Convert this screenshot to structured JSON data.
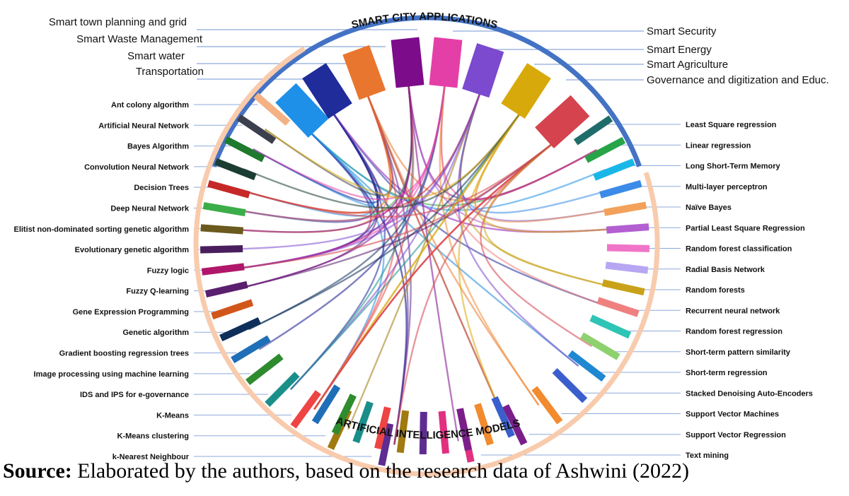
{
  "diagram": {
    "app_label": "SMART CITY APPLICATIONS",
    "ai_label": "ARTIFICIAL INTELLIGENCE MODELS",
    "applications": [
      {
        "label": "Smart town planning and grid",
        "color": "#E9762E"
      },
      {
        "label": "Smart Waste Management",
        "color": "#1F2C9A"
      },
      {
        "label": "Smart water",
        "color": "#1E90E8"
      },
      {
        "label": "Transportation",
        "color": "#1E90E8"
      },
      {
        "label": "Smart Security",
        "color": "#E43FA7"
      },
      {
        "label": "Smart Energy",
        "color": "#7B4ACF"
      },
      {
        "label": "Smart Agriculture",
        "color": "#D8A90A"
      },
      {
        "label": "Governance and digitization and Educ.",
        "color": "#D4434E"
      }
    ],
    "app_blocks": [
      {
        "color": "#1E90E8"
      },
      {
        "color": "#1F2C9A"
      },
      {
        "color": "#E9762E"
      },
      {
        "color": "#7D0C8A"
      },
      {
        "color": "#E43FA7"
      },
      {
        "color": "#7B4ACF"
      },
      {
        "color": "#D8A90A"
      },
      {
        "color": "#D4434E"
      }
    ],
    "models_left": [
      {
        "label": "Ant colony algorithm",
        "color": "#F4B183"
      },
      {
        "label": "Artificial Neural Network",
        "color": "#3C3F4C"
      },
      {
        "label": "Bayes Algorithm",
        "color": "#1E7A2E"
      },
      {
        "label": "Convolution Neural Network",
        "color": "#1C3D33"
      },
      {
        "label": "Decision Trees",
        "color": "#C62828"
      },
      {
        "label": "Deep Neural Network",
        "color": "#3BAE4A"
      },
      {
        "label": "Elitist non-dominated sorting genetic algorithm",
        "color": "#6B5A1E"
      },
      {
        "label": "Evolutionary genetic algorithm",
        "color": "#4A1E5E"
      },
      {
        "label": "Fuzzy logic",
        "color": "#B0176A"
      },
      {
        "label": "Fuzzy Q-learning",
        "color": "#5A1F6E"
      },
      {
        "label": "Gene Expression Programming",
        "color": "#D2561A"
      },
      {
        "label": "Genetic algorithm",
        "color": "#0E2F5A"
      },
      {
        "label": "Gradient boosting regression trees",
        "color": "#1F6FB8"
      },
      {
        "label": "Image processing using machine learning",
        "color": "#2E8B2E"
      },
      {
        "label": "IDS and IPS for e-governance",
        "color": "#1A8F8A"
      },
      {
        "label": "K-Means",
        "color": "#EE4444"
      },
      {
        "label": "K-Means clustering",
        "color": "#A07A10"
      },
      {
        "label": "k-Nearest Neighbour",
        "color": "#5E2C91"
      }
    ],
    "models_right": [
      {
        "label": "Least Square regression",
        "color": "#1F6D6A"
      },
      {
        "label": "Linear regression",
        "color": "#26A447"
      },
      {
        "label": "Long Short-Term Memory",
        "color": "#19B7E8"
      },
      {
        "label": "Multi-layer perceptron",
        "color": "#3D8BE8"
      },
      {
        "label": "Naïve Bayes",
        "color": "#F2A25A"
      },
      {
        "label": "Partial Least Square Regression",
        "color": "#B35FD1"
      },
      {
        "label": "Random forest classification",
        "color": "#F075C9"
      },
      {
        "label": "Radial Basis Network",
        "color": "#B7A6F2"
      },
      {
        "label": "Random forests",
        "color": "#C9A21A"
      },
      {
        "label": "Recurrent neural network",
        "color": "#F08080"
      },
      {
        "label": "Random forest regression",
        "color": "#2EC4B6"
      },
      {
        "label": "Short-term pattern similarity",
        "color": "#8ED16F"
      },
      {
        "label": "Short-term regression",
        "color": "#1F88D1"
      },
      {
        "label": "Stacked Denoising Auto-Encoders",
        "color": "#3A5FCD"
      },
      {
        "label": "Support Vector Machines",
        "color": "#F28A2E"
      },
      {
        "label": "Support Vector Regression",
        "color": "#7A1F8A"
      },
      {
        "label": "Text mining",
        "color": "#E0307F"
      }
    ],
    "bottom_stubs": [
      {
        "color": "#1F6FB8"
      },
      {
        "color": "#2E8B2E"
      },
      {
        "color": "#1A8F8A"
      },
      {
        "color": "#EE4444"
      },
      {
        "color": "#A07A10"
      },
      {
        "color": "#5E2C91"
      },
      {
        "color": "#E0307F"
      },
      {
        "color": "#7A1F8A"
      },
      {
        "color": "#F28A2E"
      },
      {
        "color": "#3A5FCD"
      }
    ],
    "ring_colors": {
      "top_arc": "#4472C4",
      "bottom_arc": "#F8CBAD",
      "leader": "#8EA9DB"
    }
  },
  "source": {
    "prefix": "Source:",
    "text": " Elaborated by the authors, based on the research data of Ashwini (2022)"
  }
}
